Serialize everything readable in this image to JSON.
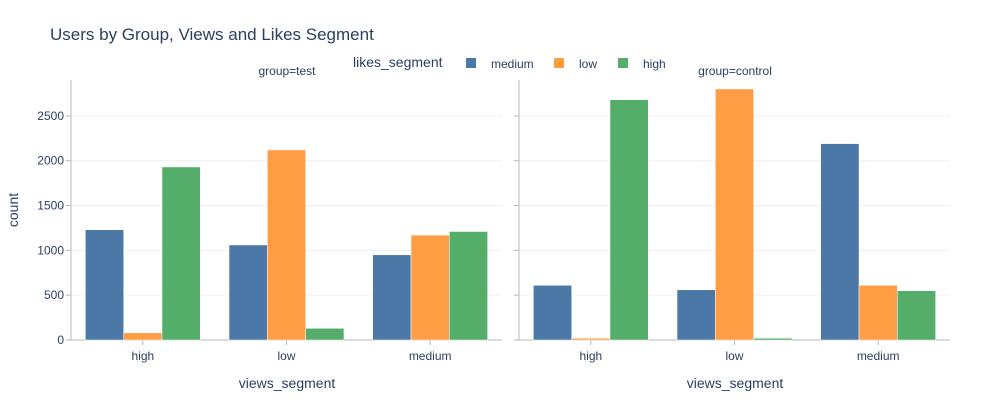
{
  "chart_data": {
    "type": "bar",
    "title": "Users by Group, Views and Likes Segment",
    "legend": {
      "title": "likes_segment",
      "placement": "top",
      "entries": [
        {
          "name": "medium",
          "color": "#4c78a8"
        },
        {
          "name": "low",
          "color": "#ff9d45"
        },
        {
          "name": "high",
          "color": "#54ae69"
        }
      ]
    },
    "ylabel": "count",
    "ylim": [
      0,
      2900
    ],
    "yticks": [
      0,
      500,
      1000,
      1500,
      2000,
      2500
    ],
    "ytick_labels": [
      "0",
      "500",
      "1000",
      "1500",
      "2000",
      "2500"
    ],
    "grid": true,
    "panels": [
      {
        "subtitle": "group=test",
        "xlabel": "views_segment",
        "categories": [
          "high",
          "low",
          "medium"
        ],
        "series": [
          {
            "name": "medium",
            "values": [
              1230,
              1060,
              950
            ]
          },
          {
            "name": "low",
            "values": [
              80,
              2120,
              1170
            ]
          },
          {
            "name": "high",
            "values": [
              1930,
              130,
              1210
            ]
          }
        ]
      },
      {
        "subtitle": "group=control",
        "xlabel": "views_segment",
        "categories": [
          "high",
          "low",
          "medium"
        ],
        "series": [
          {
            "name": "medium",
            "values": [
              610,
              560,
              2190
            ]
          },
          {
            "name": "low",
            "values": [
              20,
              2800,
              610
            ]
          },
          {
            "name": "high",
            "values": [
              2680,
              20,
              550
            ]
          }
        ]
      }
    ]
  }
}
